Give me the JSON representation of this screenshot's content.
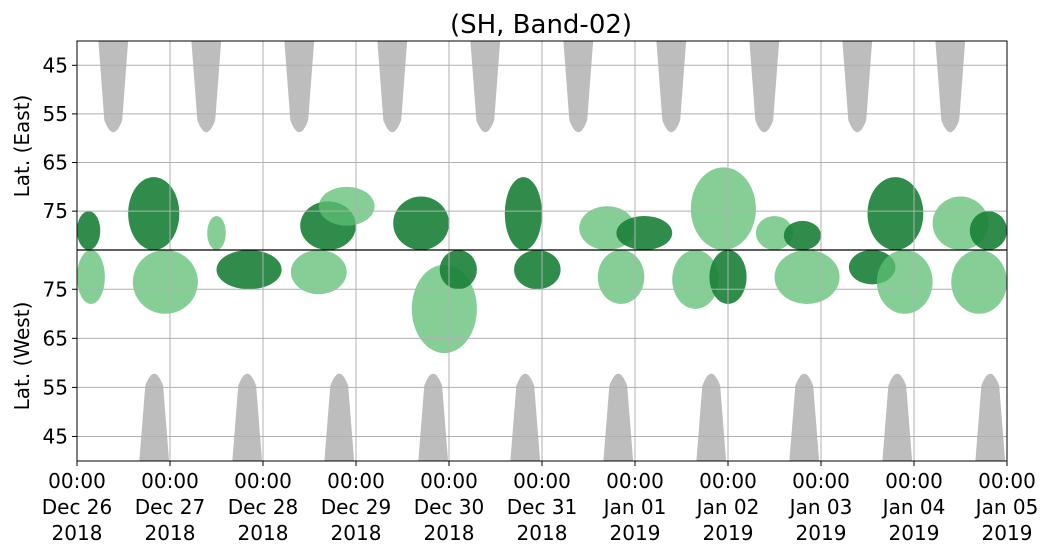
{
  "chart_data": {
    "type": "heatmap",
    "title": "(SH, Band-02)",
    "ylabel_top": "Lat. (East)",
    "ylabel_bottom": "Lat. (West)",
    "y_ticks_top": [
      "45",
      "55",
      "65",
      "75"
    ],
    "y_ticks_bottom": [
      "75",
      "65",
      "55",
      "45"
    ],
    "x_ticks": [
      {
        "time": "00:00",
        "date": "Dec 26",
        "year": "2018"
      },
      {
        "time": "00:00",
        "date": "Dec 27",
        "year": "2018"
      },
      {
        "time": "00:00",
        "date": "Dec 28",
        "year": "2018"
      },
      {
        "time": "00:00",
        "date": "Dec 29",
        "year": "2018"
      },
      {
        "time": "00:00",
        "date": "Dec 30",
        "year": "2018"
      },
      {
        "time": "00:00",
        "date": "Dec 31",
        "year": "2018"
      },
      {
        "time": "00:00",
        "date": "Jan 01",
        "year": "2019"
      },
      {
        "time": "00:00",
        "date": "Jan 02",
        "year": "2019"
      },
      {
        "time": "00:00",
        "date": "Jan 03",
        "year": "2019"
      },
      {
        "time": "00:00",
        "date": "Jan 04",
        "year": "2019"
      },
      {
        "time": "00:00",
        "date": "Jan 05",
        "year": "2019"
      }
    ],
    "x_range": [
      "2018-12-26 00:00",
      "2019-01-05 00:00"
    ],
    "grid": true,
    "colors": {
      "strong": "#1a7f37",
      "weak": "#5cbf74",
      "no_data": "#bdbdbd",
      "grid": "#b0b0b0"
    },
    "east_no_data_regions": [
      {
        "center_day": 0.39,
        "min_lat": 60
      },
      {
        "center_day": 1.39,
        "min_lat": 60
      },
      {
        "center_day": 2.39,
        "min_lat": 60
      },
      {
        "center_day": 3.39,
        "min_lat": 60
      },
      {
        "center_day": 4.39,
        "min_lat": 60
      },
      {
        "center_day": 5.39,
        "min_lat": 60
      },
      {
        "center_day": 6.39,
        "min_lat": 60
      },
      {
        "center_day": 7.39,
        "min_lat": 60
      },
      {
        "center_day": 8.39,
        "min_lat": 60
      },
      {
        "center_day": 9.39,
        "min_lat": 60
      }
    ],
    "west_no_data_regions": [
      {
        "center_day": 0.83,
        "min_lat": 59
      },
      {
        "center_day": 1.83,
        "min_lat": 59
      },
      {
        "center_day": 2.82,
        "min_lat": 59
      },
      {
        "center_day": 3.83,
        "min_lat": 59
      },
      {
        "center_day": 4.82,
        "min_lat": 59
      },
      {
        "center_day": 5.82,
        "min_lat": 59
      },
      {
        "center_day": 6.82,
        "min_lat": 59
      },
      {
        "center_day": 7.82,
        "min_lat": 59
      },
      {
        "center_day": 8.82,
        "min_lat": 59
      },
      {
        "center_day": 9.82,
        "min_lat": 59
      }
    ],
    "echo_patches": [
      {
        "hemisphere": "east",
        "day_start": 0.0,
        "day_end": 0.25,
        "lat_min": 75,
        "lat_max": 83,
        "level": "strong"
      },
      {
        "hemisphere": "west",
        "day_start": 0.0,
        "day_end": 0.3,
        "lat_min": 72,
        "lat_max": 83,
        "level": "weak"
      },
      {
        "hemisphere": "east",
        "day_start": 0.55,
        "day_end": 1.1,
        "lat_min": 68,
        "lat_max": 83,
        "level": "strong"
      },
      {
        "hemisphere": "west",
        "day_start": 0.6,
        "day_end": 1.3,
        "lat_min": 70,
        "lat_max": 83,
        "level": "weak"
      },
      {
        "hemisphere": "east",
        "day_start": 1.4,
        "day_end": 1.6,
        "lat_min": 76,
        "lat_max": 83,
        "level": "weak"
      },
      {
        "hemisphere": "west",
        "day_start": 1.5,
        "day_end": 2.2,
        "lat_min": 75,
        "lat_max": 83,
        "level": "strong"
      },
      {
        "hemisphere": "east",
        "day_start": 2.4,
        "day_end": 3.0,
        "lat_min": 73,
        "lat_max": 83,
        "level": "strong"
      },
      {
        "hemisphere": "west",
        "day_start": 2.3,
        "day_end": 2.9,
        "lat_min": 74,
        "lat_max": 83,
        "level": "weak"
      },
      {
        "hemisphere": "east",
        "day_start": 2.6,
        "day_end": 3.2,
        "lat_min": 70,
        "lat_max": 78,
        "level": "weak"
      },
      {
        "hemisphere": "east",
        "day_start": 3.4,
        "day_end": 4.0,
        "lat_min": 72,
        "lat_max": 83,
        "level": "strong"
      },
      {
        "hemisphere": "west",
        "day_start": 3.6,
        "day_end": 4.3,
        "lat_min": 62,
        "lat_max": 80,
        "level": "weak"
      },
      {
        "hemisphere": "west",
        "day_start": 3.9,
        "day_end": 4.3,
        "lat_min": 75,
        "lat_max": 83,
        "level": "strong"
      },
      {
        "hemisphere": "east",
        "day_start": 4.6,
        "day_end": 5.0,
        "lat_min": 68,
        "lat_max": 83,
        "level": "strong"
      },
      {
        "hemisphere": "west",
        "day_start": 4.7,
        "day_end": 5.2,
        "lat_min": 75,
        "lat_max": 83,
        "level": "strong"
      },
      {
        "hemisphere": "east",
        "day_start": 5.4,
        "day_end": 6.0,
        "lat_min": 74,
        "lat_max": 83,
        "level": "weak"
      },
      {
        "hemisphere": "west",
        "day_start": 5.6,
        "day_end": 6.1,
        "lat_min": 72,
        "lat_max": 83,
        "level": "weak"
      },
      {
        "hemisphere": "east",
        "day_start": 5.8,
        "day_end": 6.4,
        "lat_min": 76,
        "lat_max": 83,
        "level": "strong"
      },
      {
        "hemisphere": "west",
        "day_start": 6.4,
        "day_end": 6.9,
        "lat_min": 71,
        "lat_max": 83,
        "level": "weak"
      },
      {
        "hemisphere": "east",
        "day_start": 6.6,
        "day_end": 7.3,
        "lat_min": 66,
        "lat_max": 83,
        "level": "weak"
      },
      {
        "hemisphere": "west",
        "day_start": 6.8,
        "day_end": 7.2,
        "lat_min": 72,
        "lat_max": 83,
        "level": "strong"
      },
      {
        "hemisphere": "east",
        "day_start": 7.3,
        "day_end": 7.7,
        "lat_min": 76,
        "lat_max": 83,
        "level": "weak"
      },
      {
        "hemisphere": "west",
        "day_start": 7.5,
        "day_end": 8.2,
        "lat_min": 72,
        "lat_max": 83,
        "level": "weak"
      },
      {
        "hemisphere": "east",
        "day_start": 7.6,
        "day_end": 8.0,
        "lat_min": 77,
        "lat_max": 83,
        "level": "strong"
      },
      {
        "hemisphere": "west",
        "day_start": 8.3,
        "day_end": 8.8,
        "lat_min": 76,
        "lat_max": 83,
        "level": "strong"
      },
      {
        "hemisphere": "east",
        "day_start": 8.5,
        "day_end": 9.1,
        "lat_min": 68,
        "lat_max": 83,
        "level": "strong"
      },
      {
        "hemisphere": "west",
        "day_start": 8.6,
        "day_end": 9.2,
        "lat_min": 70,
        "lat_max": 83,
        "level": "weak"
      },
      {
        "hemisphere": "east",
        "day_start": 9.2,
        "day_end": 9.8,
        "lat_min": 72,
        "lat_max": 83,
        "level": "weak"
      },
      {
        "hemisphere": "west",
        "day_start": 9.4,
        "day_end": 10.0,
        "lat_min": 70,
        "lat_max": 83,
        "level": "weak"
      },
      {
        "hemisphere": "east",
        "day_start": 9.6,
        "day_end": 10.0,
        "lat_min": 75,
        "lat_max": 83,
        "level": "strong"
      }
    ]
  }
}
